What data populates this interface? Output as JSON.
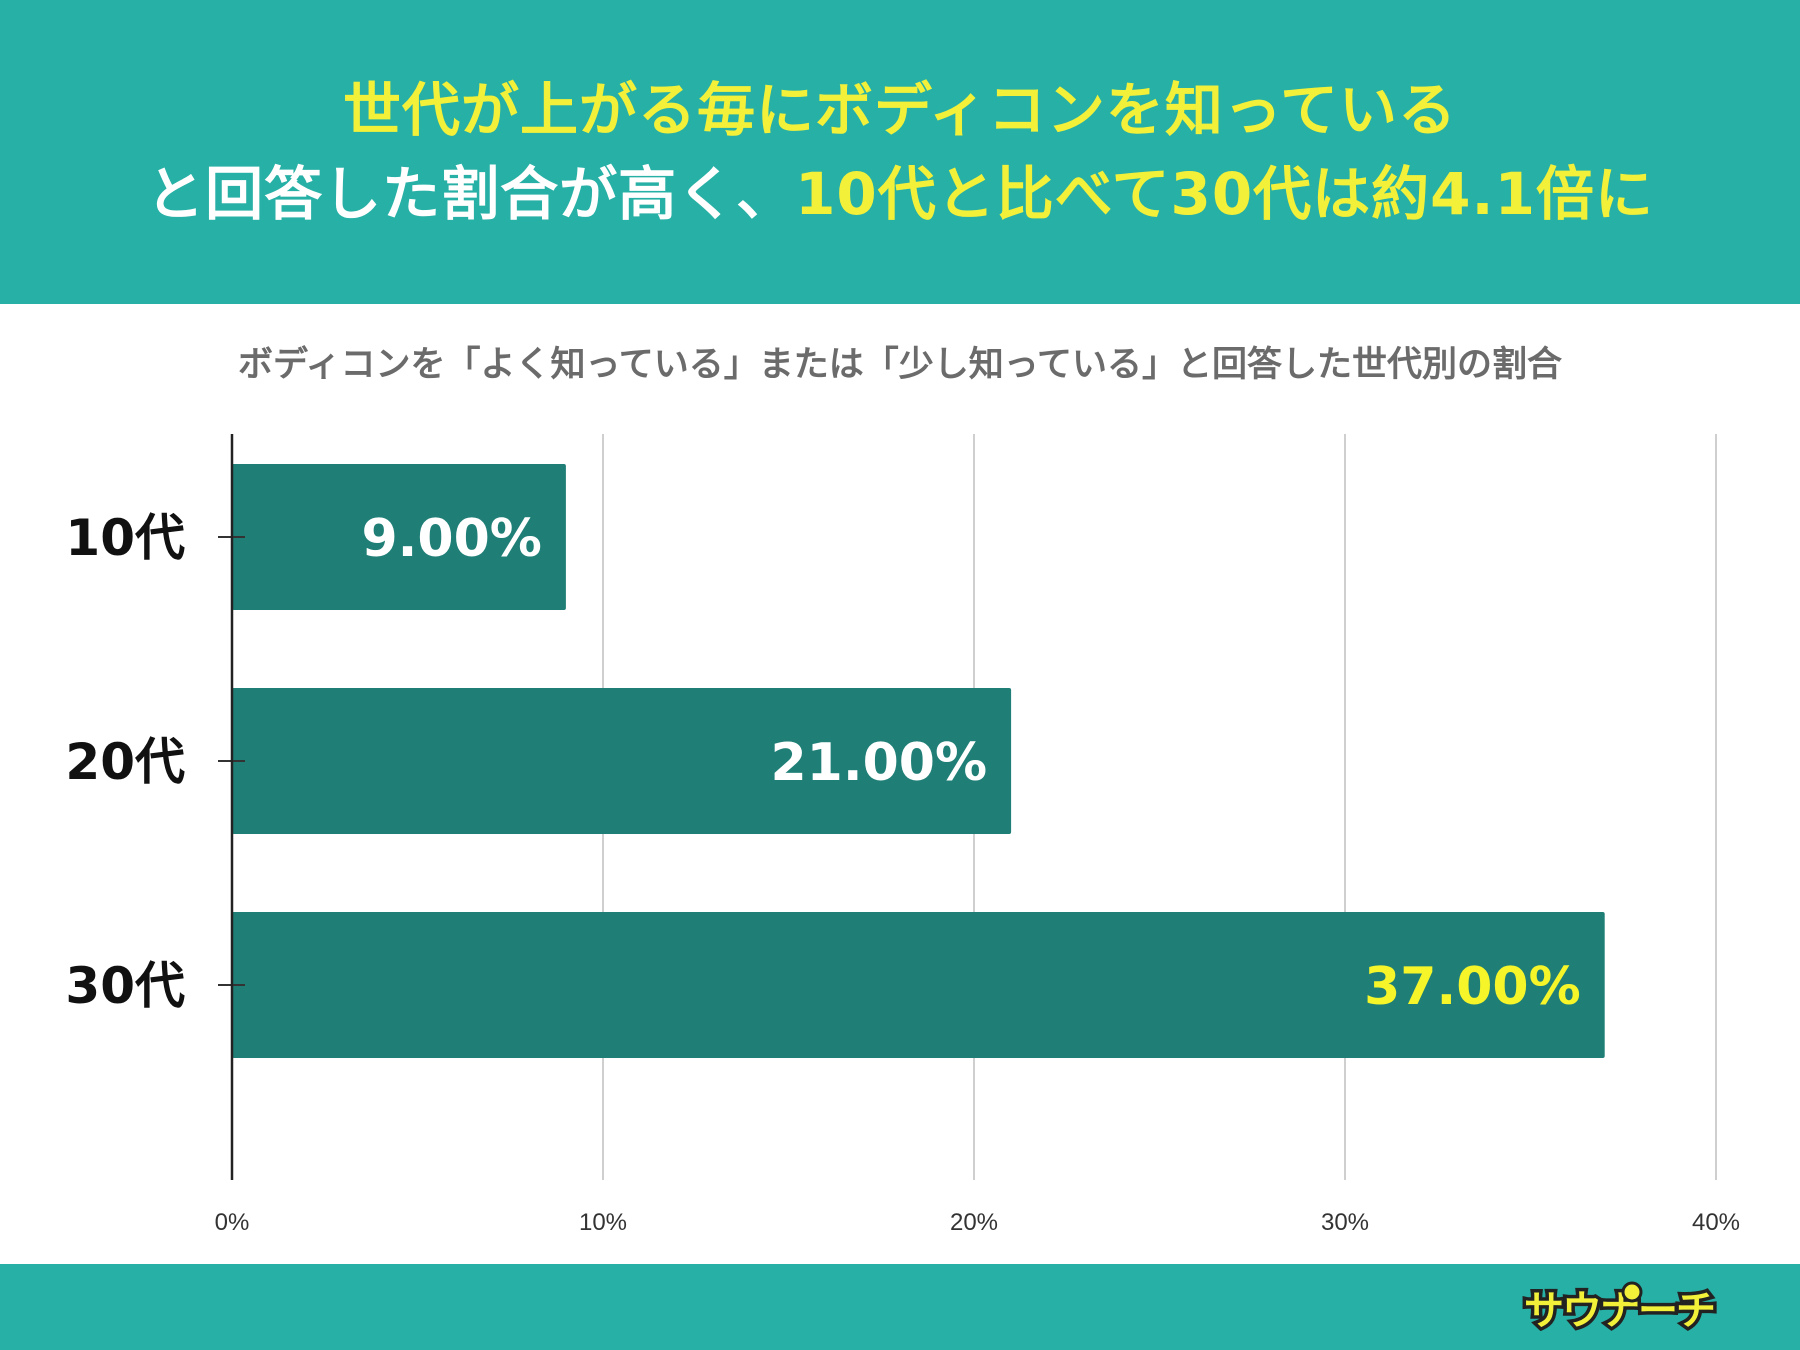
{
  "header": {
    "line1": "世代が上がる毎にボディコンを知っている",
    "line2_white": "と回答した割合が高く、",
    "line2_yellow": "10代と比べて30代は約4.1倍に"
  },
  "colors": {
    "header_bg": "#27b0a5",
    "highlight": "#f3f03a",
    "bar": "#1f7f77",
    "label_white": "#ffffff",
    "label_highlight": "#f5f52a"
  },
  "chart_data": {
    "type": "bar",
    "orientation": "horizontal",
    "title": "ボディコンを「よく知っている」または「少し知っている」と回答した世代別の割合",
    "categories": [
      "10代",
      "20代",
      "30代"
    ],
    "values": [
      9.0,
      21.0,
      37.0
    ],
    "data_labels": [
      "9.00%",
      "21.00%",
      "37.00%"
    ],
    "xlim": [
      0,
      40
    ],
    "x_ticks": [
      0,
      10,
      20,
      30,
      40
    ],
    "x_tick_labels": [
      "0%",
      "10%",
      "20%",
      "30%",
      "40%"
    ],
    "grid": true,
    "legend": false
  },
  "footer": {
    "logo": "サウナーチ"
  }
}
